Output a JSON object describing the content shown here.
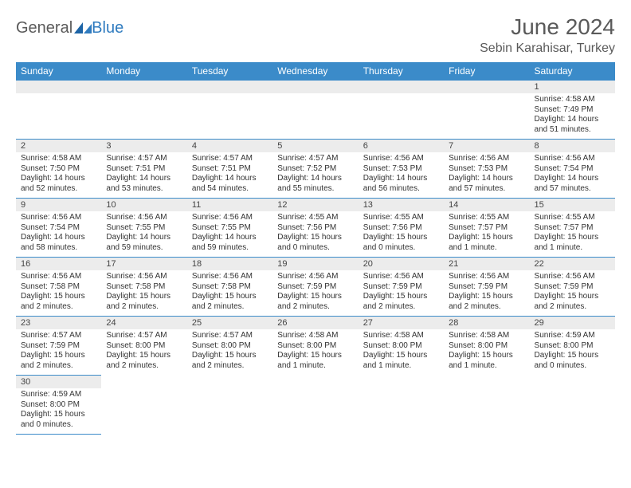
{
  "brand": {
    "part1": "General",
    "part2": "Blue"
  },
  "header": {
    "month_title": "June 2024",
    "location": "Sebin Karahisar, Turkey"
  },
  "colors": {
    "header_bg": "#3b8bc9",
    "header_text": "#ffffff",
    "daybar_bg": "#ececec",
    "border": "#3b8bc9",
    "title_color": "#5a5a5a",
    "brand_blue": "#2f7bbf"
  },
  "week_headers": [
    "Sunday",
    "Monday",
    "Tuesday",
    "Wednesday",
    "Thursday",
    "Friday",
    "Saturday"
  ],
  "weeks": [
    [
      {
        "blank": true
      },
      {
        "blank": true
      },
      {
        "blank": true
      },
      {
        "blank": true
      },
      {
        "blank": true
      },
      {
        "blank": true
      },
      {
        "day": "1",
        "sunrise": "Sunrise: 4:58 AM",
        "sunset": "Sunset: 7:49 PM",
        "daylight1": "Daylight: 14 hours",
        "daylight2": "and 51 minutes."
      }
    ],
    [
      {
        "day": "2",
        "sunrise": "Sunrise: 4:58 AM",
        "sunset": "Sunset: 7:50 PM",
        "daylight1": "Daylight: 14 hours",
        "daylight2": "and 52 minutes."
      },
      {
        "day": "3",
        "sunrise": "Sunrise: 4:57 AM",
        "sunset": "Sunset: 7:51 PM",
        "daylight1": "Daylight: 14 hours",
        "daylight2": "and 53 minutes."
      },
      {
        "day": "4",
        "sunrise": "Sunrise: 4:57 AM",
        "sunset": "Sunset: 7:51 PM",
        "daylight1": "Daylight: 14 hours",
        "daylight2": "and 54 minutes."
      },
      {
        "day": "5",
        "sunrise": "Sunrise: 4:57 AM",
        "sunset": "Sunset: 7:52 PM",
        "daylight1": "Daylight: 14 hours",
        "daylight2": "and 55 minutes."
      },
      {
        "day": "6",
        "sunrise": "Sunrise: 4:56 AM",
        "sunset": "Sunset: 7:53 PM",
        "daylight1": "Daylight: 14 hours",
        "daylight2": "and 56 minutes."
      },
      {
        "day": "7",
        "sunrise": "Sunrise: 4:56 AM",
        "sunset": "Sunset: 7:53 PM",
        "daylight1": "Daylight: 14 hours",
        "daylight2": "and 57 minutes."
      },
      {
        "day": "8",
        "sunrise": "Sunrise: 4:56 AM",
        "sunset": "Sunset: 7:54 PM",
        "daylight1": "Daylight: 14 hours",
        "daylight2": "and 57 minutes."
      }
    ],
    [
      {
        "day": "9",
        "sunrise": "Sunrise: 4:56 AM",
        "sunset": "Sunset: 7:54 PM",
        "daylight1": "Daylight: 14 hours",
        "daylight2": "and 58 minutes."
      },
      {
        "day": "10",
        "sunrise": "Sunrise: 4:56 AM",
        "sunset": "Sunset: 7:55 PM",
        "daylight1": "Daylight: 14 hours",
        "daylight2": "and 59 minutes."
      },
      {
        "day": "11",
        "sunrise": "Sunrise: 4:56 AM",
        "sunset": "Sunset: 7:55 PM",
        "daylight1": "Daylight: 14 hours",
        "daylight2": "and 59 minutes."
      },
      {
        "day": "12",
        "sunrise": "Sunrise: 4:55 AM",
        "sunset": "Sunset: 7:56 PM",
        "daylight1": "Daylight: 15 hours",
        "daylight2": "and 0 minutes."
      },
      {
        "day": "13",
        "sunrise": "Sunrise: 4:55 AM",
        "sunset": "Sunset: 7:56 PM",
        "daylight1": "Daylight: 15 hours",
        "daylight2": "and 0 minutes."
      },
      {
        "day": "14",
        "sunrise": "Sunrise: 4:55 AM",
        "sunset": "Sunset: 7:57 PM",
        "daylight1": "Daylight: 15 hours",
        "daylight2": "and 1 minute."
      },
      {
        "day": "15",
        "sunrise": "Sunrise: 4:55 AM",
        "sunset": "Sunset: 7:57 PM",
        "daylight1": "Daylight: 15 hours",
        "daylight2": "and 1 minute."
      }
    ],
    [
      {
        "day": "16",
        "sunrise": "Sunrise: 4:56 AM",
        "sunset": "Sunset: 7:58 PM",
        "daylight1": "Daylight: 15 hours",
        "daylight2": "and 2 minutes."
      },
      {
        "day": "17",
        "sunrise": "Sunrise: 4:56 AM",
        "sunset": "Sunset: 7:58 PM",
        "daylight1": "Daylight: 15 hours",
        "daylight2": "and 2 minutes."
      },
      {
        "day": "18",
        "sunrise": "Sunrise: 4:56 AM",
        "sunset": "Sunset: 7:58 PM",
        "daylight1": "Daylight: 15 hours",
        "daylight2": "and 2 minutes."
      },
      {
        "day": "19",
        "sunrise": "Sunrise: 4:56 AM",
        "sunset": "Sunset: 7:59 PM",
        "daylight1": "Daylight: 15 hours",
        "daylight2": "and 2 minutes."
      },
      {
        "day": "20",
        "sunrise": "Sunrise: 4:56 AM",
        "sunset": "Sunset: 7:59 PM",
        "daylight1": "Daylight: 15 hours",
        "daylight2": "and 2 minutes."
      },
      {
        "day": "21",
        "sunrise": "Sunrise: 4:56 AM",
        "sunset": "Sunset: 7:59 PM",
        "daylight1": "Daylight: 15 hours",
        "daylight2": "and 2 minutes."
      },
      {
        "day": "22",
        "sunrise": "Sunrise: 4:56 AM",
        "sunset": "Sunset: 7:59 PM",
        "daylight1": "Daylight: 15 hours",
        "daylight2": "and 2 minutes."
      }
    ],
    [
      {
        "day": "23",
        "sunrise": "Sunrise: 4:57 AM",
        "sunset": "Sunset: 7:59 PM",
        "daylight1": "Daylight: 15 hours",
        "daylight2": "and 2 minutes."
      },
      {
        "day": "24",
        "sunrise": "Sunrise: 4:57 AM",
        "sunset": "Sunset: 8:00 PM",
        "daylight1": "Daylight: 15 hours",
        "daylight2": "and 2 minutes."
      },
      {
        "day": "25",
        "sunrise": "Sunrise: 4:57 AM",
        "sunset": "Sunset: 8:00 PM",
        "daylight1": "Daylight: 15 hours",
        "daylight2": "and 2 minutes."
      },
      {
        "day": "26",
        "sunrise": "Sunrise: 4:58 AM",
        "sunset": "Sunset: 8:00 PM",
        "daylight1": "Daylight: 15 hours",
        "daylight2": "and 1 minute."
      },
      {
        "day": "27",
        "sunrise": "Sunrise: 4:58 AM",
        "sunset": "Sunset: 8:00 PM",
        "daylight1": "Daylight: 15 hours",
        "daylight2": "and 1 minute."
      },
      {
        "day": "28",
        "sunrise": "Sunrise: 4:58 AM",
        "sunset": "Sunset: 8:00 PM",
        "daylight1": "Daylight: 15 hours",
        "daylight2": "and 1 minute."
      },
      {
        "day": "29",
        "sunrise": "Sunrise: 4:59 AM",
        "sunset": "Sunset: 8:00 PM",
        "daylight1": "Daylight: 15 hours",
        "daylight2": "and 0 minutes."
      }
    ],
    [
      {
        "day": "30",
        "sunrise": "Sunrise: 4:59 AM",
        "sunset": "Sunset: 8:00 PM",
        "daylight1": "Daylight: 15 hours",
        "daylight2": "and 0 minutes."
      },
      {
        "blank": true
      },
      {
        "blank": true
      },
      {
        "blank": true
      },
      {
        "blank": true
      },
      {
        "blank": true
      },
      {
        "blank": true
      }
    ]
  ]
}
